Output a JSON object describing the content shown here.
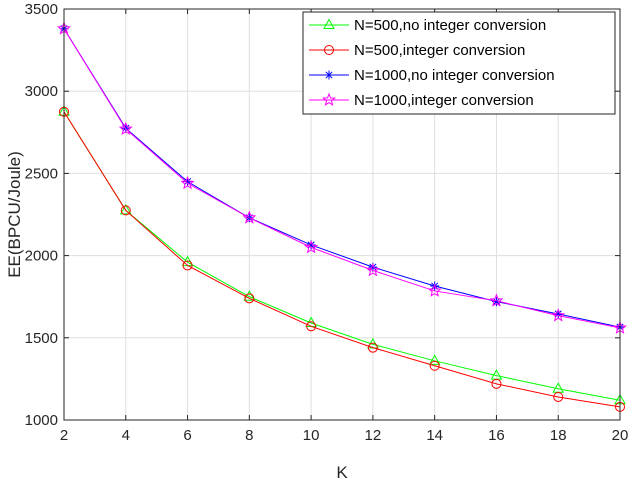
{
  "chart_data": {
    "type": "line",
    "xlabel": "K",
    "ylabel": "EE(BPCU/Joule)",
    "xlim": [
      2,
      20
    ],
    "ylim": [
      1000,
      3500
    ],
    "xticks": [
      "2",
      "4",
      "6",
      "8",
      "10",
      "12",
      "14",
      "16",
      "18",
      "20"
    ],
    "yticks": [
      "1000",
      "1500",
      "2000",
      "2500",
      "3000",
      "3500"
    ],
    "grid": true,
    "legend_position": "top-right",
    "x": [
      2,
      4,
      6,
      8,
      10,
      12,
      14,
      16,
      18,
      20
    ],
    "series": [
      {
        "name": "N=500,no integer conversion",
        "color": "#00ff00",
        "marker": "triangle",
        "values": [
          2875,
          2275,
          1960,
          1750,
          1590,
          1460,
          1360,
          1270,
          1190,
          1120
        ]
      },
      {
        "name": "N=500,integer conversion",
        "color": "#ff0000",
        "marker": "circle",
        "values": [
          2875,
          2275,
          1940,
          1740,
          1570,
          1440,
          1330,
          1220,
          1140,
          1080
        ]
      },
      {
        "name": "N=1000,no integer conversion",
        "color": "#0000ff",
        "marker": "asterisk",
        "values": [
          3380,
          2775,
          2450,
          2230,
          2065,
          1930,
          1815,
          1720,
          1645,
          1565
        ]
      },
      {
        "name": "N=1000,integer conversion",
        "color": "#ff00ff",
        "marker": "star",
        "values": [
          3380,
          2770,
          2440,
          2230,
          2050,
          1910,
          1785,
          1725,
          1635,
          1560
        ]
      }
    ]
  }
}
